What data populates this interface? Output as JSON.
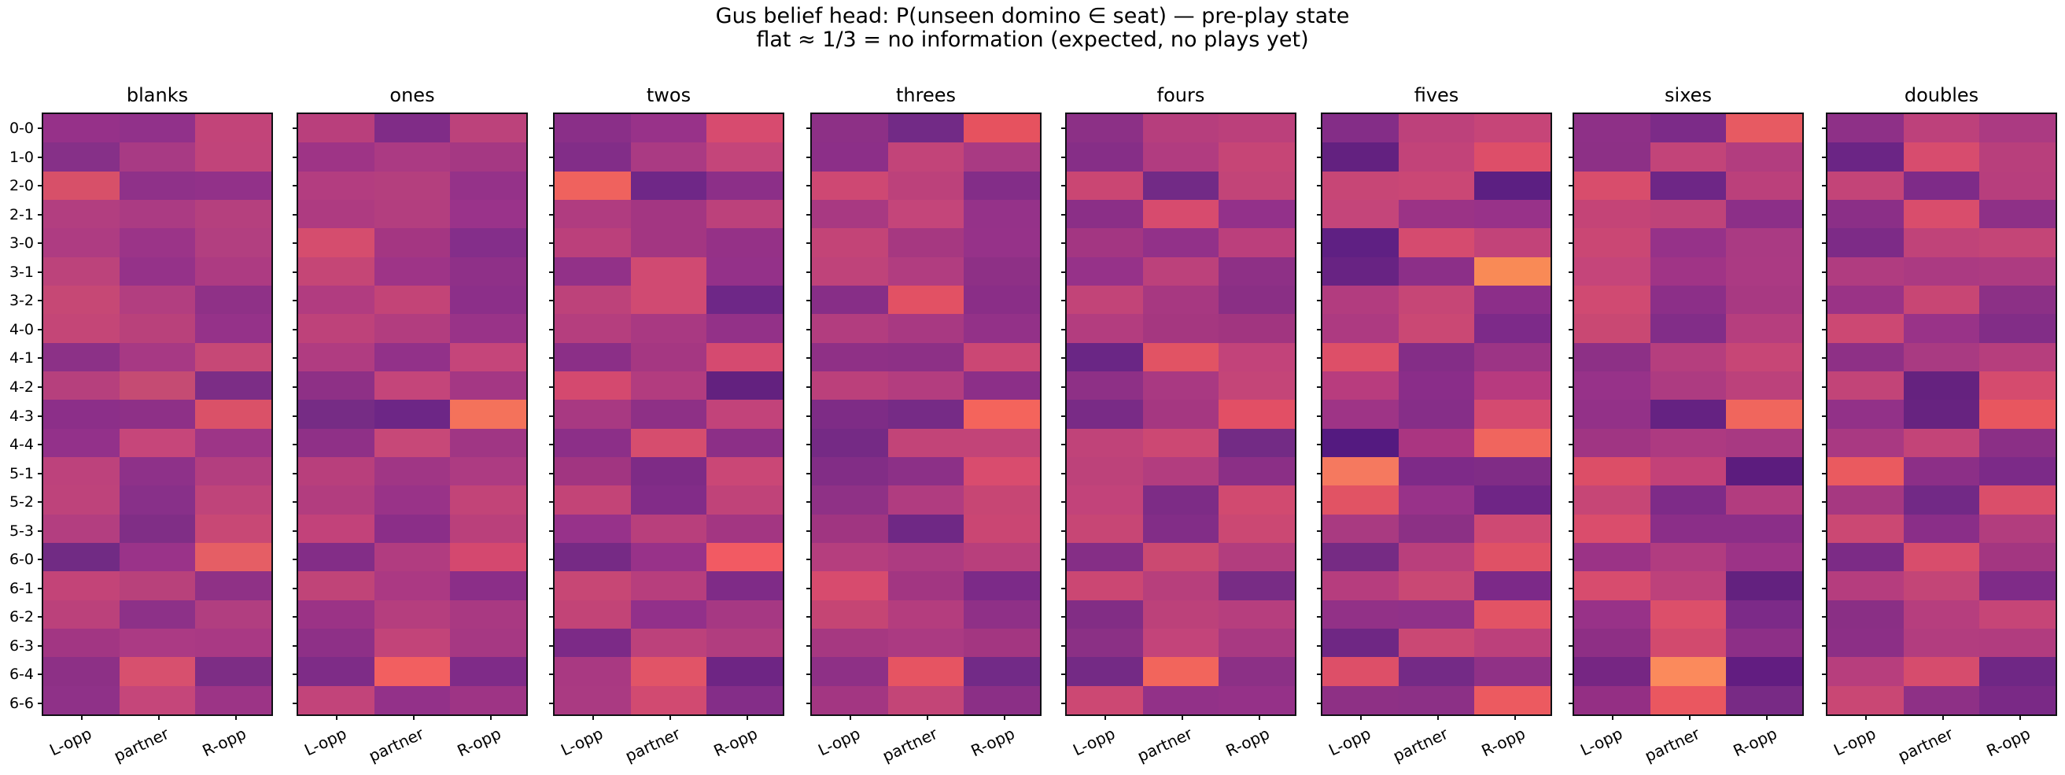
{
  "figure": {
    "title_line1": "Gus belief head: P(unseen domino ∈ seat) — pre-play state",
    "title_line2": "flat ≈ 1/3 = no information (expected, no plays yet)",
    "background_color": "#ffffff",
    "spine_color": "#101014"
  },
  "chart_data": {
    "type": "heatmap",
    "colormap_hint": "magma-like (dark purple ≈ low, orange ≈ high)",
    "x_categories": [
      "L-opp",
      "partner",
      "R-opp"
    ],
    "y_categories": [
      "0-0",
      "1-0",
      "2-0",
      "2-1",
      "3-0",
      "3-1",
      "3-2",
      "4-0",
      "4-1",
      "4-2",
      "4-3",
      "4-4",
      "5-1",
      "5-2",
      "5-3",
      "6-0",
      "6-1",
      "6-2",
      "6-3",
      "6-4",
      "6-6"
    ],
    "y_axis_labels_note": "y tick labels shown on first panel only; all panels have tick marks",
    "panels": [
      {
        "title": "blanks",
        "cell_colors": [
          [
            "#963189",
            "#91318a",
            "#c24479"
          ],
          [
            "#863088",
            "#a83a84",
            "#c1447a"
          ],
          [
            "#d75069",
            "#8f3189",
            "#923189"
          ],
          [
            "#b23e80",
            "#ab3b83",
            "#b5407e"
          ],
          [
            "#ae3c82",
            "#9b3488",
            "#b23f80"
          ],
          [
            "#bc437b",
            "#953289",
            "#ad3b82"
          ],
          [
            "#c64875",
            "#b23e80",
            "#8f3187"
          ],
          [
            "#c44677",
            "#b9417b",
            "#953289"
          ],
          [
            "#8c3187",
            "#a73984",
            "#c64876"
          ],
          [
            "#b6407d",
            "#c54b73",
            "#7c2d86"
          ],
          [
            "#8c2f89",
            "#8e3087",
            "#da5168"
          ],
          [
            "#93318a",
            "#c6467a",
            "#9d3587"
          ],
          [
            "#bd427c",
            "#8e3189",
            "#b33e7f"
          ],
          [
            "#be437b",
            "#883089",
            "#bf447a"
          ],
          [
            "#b33e80",
            "#802e86",
            "#c84875"
          ],
          [
            "#712b84",
            "#9a3389",
            "#e55e65"
          ],
          [
            "#c34478",
            "#b8417b",
            "#8f3186"
          ],
          [
            "#bb417b",
            "#8d3188",
            "#b13e80"
          ],
          [
            "#a23683",
            "#ab3a84",
            "#a93984"
          ],
          [
            "#8d3086",
            "#d7506e",
            "#7d2d85"
          ],
          [
            "#8f3188",
            "#c5467a",
            "#9c3486"
          ]
        ]
      },
      {
        "title": "ones",
        "cell_colors": [
          [
            "#b93f7c",
            "#802c87",
            "#bc427b"
          ],
          [
            "#9e3486",
            "#ab3a83",
            "#a53883"
          ],
          [
            "#b33d80",
            "#b43f7e",
            "#953289"
          ],
          [
            "#ae3b81",
            "#b33e7f",
            "#9a338a"
          ],
          [
            "#d54d6e",
            "#a43682",
            "#842e8a"
          ],
          [
            "#c54676",
            "#9e3487",
            "#8f3088"
          ],
          [
            "#b13c80",
            "#c34477",
            "#8c2f89"
          ],
          [
            "#be427a",
            "#b23d7f",
            "#993388"
          ],
          [
            "#b03c81",
            "#923189",
            "#c5457a"
          ],
          [
            "#8e3086",
            "#c4457a",
            "#a43784"
          ],
          [
            "#762c85",
            "#6d2686",
            "#f4725b"
          ],
          [
            "#8f3087",
            "#c74878",
            "#a03684"
          ],
          [
            "#b83f7c",
            "#a03685",
            "#ad3b82"
          ],
          [
            "#b23d7f",
            "#993388",
            "#c24478"
          ],
          [
            "#c2427a",
            "#8b2e88",
            "#ba407b"
          ],
          [
            "#832d87",
            "#b13c80",
            "#d4486f"
          ],
          [
            "#c04478",
            "#ab3983",
            "#8b2e88"
          ],
          [
            "#9b3386",
            "#b53e7e",
            "#a93982"
          ],
          [
            "#8e3087",
            "#c24479",
            "#a63883"
          ],
          [
            "#7e2c87",
            "#f25f60",
            "#7f2b88"
          ],
          [
            "#c2447a",
            "#933189",
            "#9e3485"
          ]
        ]
      },
      {
        "title": "twos",
        "cell_colors": [
          [
            "#8a2f88",
            "#983289",
            "#d74b6f"
          ],
          [
            "#822d88",
            "#aa3a83",
            "#c4457a"
          ],
          [
            "#ef625e",
            "#6f2787",
            "#8c2f88"
          ],
          [
            "#b03c80",
            "#a33682",
            "#bc417b"
          ],
          [
            "#bb407b",
            "#a33682",
            "#953187"
          ],
          [
            "#923188",
            "#d04a72",
            "#943189"
          ],
          [
            "#bd427a",
            "#d04a72",
            "#6e2787"
          ],
          [
            "#b53e7e",
            "#a93982",
            "#933188"
          ],
          [
            "#8b2f87",
            "#a53782",
            "#d54a70"
          ],
          [
            "#d4496f",
            "#b23c7f",
            "#63217f"
          ],
          [
            "#a83982",
            "#8e3086",
            "#c2437a"
          ],
          [
            "#8c2f88",
            "#d64d6e",
            "#8c2f87"
          ],
          [
            "#a13581",
            "#7e2b86",
            "#ca4776"
          ],
          [
            "#c34477",
            "#822c88",
            "#c04379"
          ],
          [
            "#97328a",
            "#b83f7c",
            "#a33682"
          ],
          [
            "#762a85",
            "#983289",
            "#f25a63"
          ],
          [
            "#c74775",
            "#b73e7d",
            "#7f2b87"
          ],
          [
            "#c24477",
            "#92308a",
            "#a63883"
          ],
          [
            "#7c2a87",
            "#bc417b",
            "#b13d7f"
          ],
          [
            "#a93982",
            "#e15467",
            "#6e2584"
          ],
          [
            "#aa3a82",
            "#d14a71",
            "#842d88"
          ]
        ]
      },
      {
        "title": "threes",
        "cell_colors": [
          [
            "#8d3086",
            "#722a86",
            "#e6525f"
          ],
          [
            "#8c2f88",
            "#c24479",
            "#a93a83"
          ],
          [
            "#ce4873",
            "#bc417b",
            "#832d88"
          ],
          [
            "#a83982",
            "#c4457a",
            "#953289"
          ],
          [
            "#c34477",
            "#a63881",
            "#963289"
          ],
          [
            "#bf437a",
            "#b13d80",
            "#8e3086"
          ],
          [
            "#872e87",
            "#e25164",
            "#8a2e87"
          ],
          [
            "#b23d7f",
            "#a83982",
            "#933188"
          ],
          [
            "#8f3086",
            "#8d3086",
            "#cb4774"
          ],
          [
            "#bb407b",
            "#b33d7f",
            "#8c2f88"
          ],
          [
            "#7e2c86",
            "#762b86",
            "#f4645c"
          ],
          [
            "#752a85",
            "#c24478",
            "#c24478"
          ],
          [
            "#822d86",
            "#8c3087",
            "#d94c6e"
          ],
          [
            "#8f3186",
            "#b03c80",
            "#c74674"
          ],
          [
            "#a03581",
            "#6f2885",
            "#ca4673"
          ],
          [
            "#b53e7e",
            "#ad3b81",
            "#b83f7c"
          ],
          [
            "#d74b6e",
            "#a23682",
            "#7c2a88"
          ],
          [
            "#c54574",
            "#b43d7e",
            "#8f3087"
          ],
          [
            "#a63881",
            "#ab3a82",
            "#a33681"
          ],
          [
            "#8e3086",
            "#e65462",
            "#722a87"
          ],
          [
            "#a33682",
            "#c34577",
            "#8b2f86"
          ]
        ]
      },
      {
        "title": "fours",
        "cell_colors": [
          [
            "#8c3086",
            "#b63e7d",
            "#bb407b"
          ],
          [
            "#862e87",
            "#b13c80",
            "#c64576"
          ],
          [
            "#ca4673",
            "#722a86",
            "#c24478"
          ],
          [
            "#8b2f87",
            "#d74b6e",
            "#93318a"
          ],
          [
            "#a33682",
            "#923189",
            "#bb3f7c"
          ],
          [
            "#963289",
            "#bc417b",
            "#8e3086"
          ],
          [
            "#c24478",
            "#a73881",
            "#8a2f85"
          ],
          [
            "#b33d7f",
            "#a53780",
            "#a13580"
          ],
          [
            "#6a2685",
            "#e15364",
            "#c2437a"
          ],
          [
            "#8e3086",
            "#a93982",
            "#c44578"
          ],
          [
            "#792b86",
            "#a53781",
            "#e24f65"
          ],
          [
            "#c04379",
            "#cc4873",
            "#732b85"
          ],
          [
            "#bd427a",
            "#b23d7f",
            "#8b2f86"
          ],
          [
            "#c2437a",
            "#7d2c86",
            "#d14a70"
          ],
          [
            "#c74675",
            "#822d87",
            "#cb4873"
          ],
          [
            "#852e86",
            "#cb4971",
            "#b23d7e"
          ],
          [
            "#cb4773",
            "#b73f7c",
            "#782c85"
          ],
          [
            "#822d85",
            "#bc417a",
            "#b63e7e"
          ],
          [
            "#8b3085",
            "#c3447a",
            "#a83982"
          ],
          [
            "#742a85",
            "#f2655c",
            "#8c3086"
          ],
          [
            "#cc4873",
            "#923188",
            "#953188"
          ]
        ]
      },
      {
        "title": "fives",
        "cell_colors": [
          [
            "#842d87",
            "#bd417b",
            "#c64578"
          ],
          [
            "#632180",
            "#c24379",
            "#dd4e69"
          ],
          [
            "#c74676",
            "#ca4775",
            "#5c1f82"
          ],
          [
            "#c4457a",
            "#9b3386",
            "#983289"
          ],
          [
            "#5f2083",
            "#d54b6f",
            "#c24379"
          ],
          [
            "#682383",
            "#8c2f88",
            "#f98a56"
          ],
          [
            "#b23c7f",
            "#c64676",
            "#8c2e89"
          ],
          [
            "#ad3a81",
            "#ca4874",
            "#7d2a89"
          ],
          [
            "#dd4f68",
            "#842d87",
            "#9c3485"
          ],
          [
            "#b83c7e",
            "#8a2d89",
            "#b73a7f"
          ],
          [
            "#9e3486",
            "#862e88",
            "#d44a70"
          ],
          [
            "#541a80",
            "#aa3581",
            "#f0655e"
          ],
          [
            "#f5795f",
            "#7e2a88",
            "#802c86"
          ],
          [
            "#e15364",
            "#983289",
            "#6f2586"
          ],
          [
            "#a93a81",
            "#8c3085",
            "#ce4973"
          ],
          [
            "#762b84",
            "#b93f7c",
            "#df5166"
          ],
          [
            "#b63d7e",
            "#c94874",
            "#7c2988"
          ],
          [
            "#923187",
            "#903189",
            "#e25365"
          ],
          [
            "#6f2784",
            "#ca4874",
            "#bc407b"
          ],
          [
            "#dd4f68",
            "#742a86",
            "#903186"
          ],
          [
            "#8e3085",
            "#8c3086",
            "#ec5a60"
          ]
        ]
      },
      {
        "title": "sixes",
        "cell_colors": [
          [
            "#8e3087",
            "#7c2b88",
            "#e75a62"
          ],
          [
            "#8d3086",
            "#c24479",
            "#b23d7f"
          ],
          [
            "#d84d6c",
            "#6e2686",
            "#bb407b"
          ],
          [
            "#c44477",
            "#bf4379",
            "#8c2f88"
          ],
          [
            "#ca4774",
            "#963289",
            "#aa3a83"
          ],
          [
            "#c5457a",
            "#a03486",
            "#ab3a83"
          ],
          [
            "#d04a72",
            "#8c2f88",
            "#a83982"
          ],
          [
            "#c94873",
            "#822d88",
            "#b63e7e"
          ],
          [
            "#8d3086",
            "#b53e7e",
            "#c74676"
          ],
          [
            "#973289",
            "#ad3b81",
            "#bc417b"
          ],
          [
            "#933188",
            "#652282",
            "#f0665d"
          ],
          [
            "#a03583",
            "#ad3a81",
            "#a83982"
          ],
          [
            "#dc4e67",
            "#c34178",
            "#5c1c7e"
          ],
          [
            "#c64676",
            "#7e2b88",
            "#b23c7f"
          ],
          [
            "#da4d6c",
            "#8b2e88",
            "#8b2e88"
          ],
          [
            "#9b3386",
            "#b13c80",
            "#9c3387"
          ],
          [
            "#d74c6e",
            "#bd417b",
            "#63217f"
          ],
          [
            "#983288",
            "#dc4f6a",
            "#7c2a88"
          ],
          [
            "#8e2f85",
            "#d24a6e",
            "#8d2f87"
          ],
          [
            "#762683",
            "#fb8a5c",
            "#621d81"
          ],
          [
            "#942f84",
            "#ea5760",
            "#782a85"
          ]
        ]
      },
      {
        "title": "doubles",
        "cell_colors": [
          [
            "#8e3087",
            "#bd417b",
            "#ab3a82"
          ],
          [
            "#6b2585",
            "#d74c6e",
            "#b83f7c"
          ],
          [
            "#c34478",
            "#7e2b88",
            "#b73e7d"
          ],
          [
            "#8b2f87",
            "#d94d6c",
            "#8e3087"
          ],
          [
            "#7d2b87",
            "#c04379",
            "#c44577"
          ],
          [
            "#b03c80",
            "#ab3a82",
            "#ad3b81"
          ],
          [
            "#9a3386",
            "#c84674",
            "#8c3086"
          ],
          [
            "#cc4873",
            "#993388",
            "#822d87"
          ],
          [
            "#8e3086",
            "#a93a82",
            "#b63e7d"
          ],
          [
            "#c24478",
            "#65227f",
            "#d54b6e"
          ],
          [
            "#923188",
            "#672380",
            "#e8565f"
          ],
          [
            "#a93982",
            "#c34478",
            "#8b2f86"
          ],
          [
            "#ea5a5f",
            "#8c2f87",
            "#7c2a88"
          ],
          [
            "#a63881",
            "#722986",
            "#da4e6a"
          ],
          [
            "#cb4873",
            "#8a2e88",
            "#b23d7e"
          ],
          [
            "#7c2b86",
            "#d84d6c",
            "#a33681"
          ],
          [
            "#b53d7e",
            "#c34577",
            "#7f2b88"
          ],
          [
            "#8a2f85",
            "#b63e7e",
            "#c64577"
          ],
          [
            "#8c2f86",
            "#b23d7f",
            "#b13c7f"
          ],
          [
            "#b73e7d",
            "#d64c6d",
            "#6f2785"
          ],
          [
            "#c94774",
            "#8e3086",
            "#7a2986"
          ]
        ]
      }
    ]
  }
}
